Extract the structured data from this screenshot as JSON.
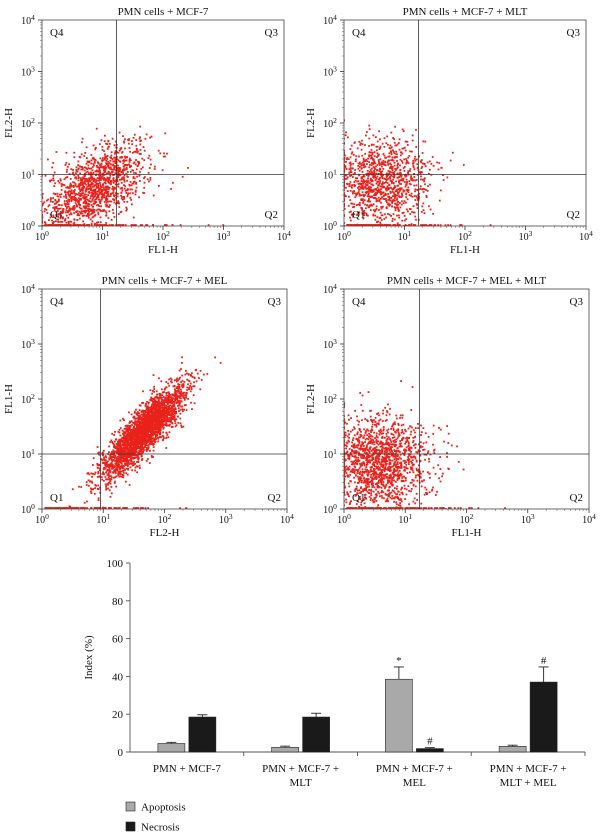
{
  "chart_data": [
    {
      "type": "scatter",
      "title": "PMN cells + MCF-7",
      "xlabel": "FL1-H",
      "ylabel": "FL2-H",
      "scale": "log",
      "xlim": [
        1,
        10000
      ],
      "ylim": [
        1,
        10000
      ],
      "gate": {
        "x": 17,
        "y": 10
      },
      "ticks": [
        "10^0",
        "10^1",
        "10^2",
        "10^3",
        "10^4"
      ],
      "quadrants": [
        "Q4",
        "Q3",
        "Q1",
        "Q2"
      ],
      "point_color": "#e8221b",
      "population": {
        "cx": 8,
        "cy": 6,
        "sx": 0.42,
        "sy": 0.42,
        "rho": 0.55,
        "n": 1300
      }
    },
    {
      "type": "scatter",
      "title": "PMN cells + MCF-7 + MLT",
      "xlabel": "FL1-H",
      "ylabel": "FL2-H",
      "scale": "log",
      "xlim": [
        1,
        10000
      ],
      "ylim": [
        1,
        10000
      ],
      "gate": {
        "x": 17,
        "y": 10
      },
      "ticks": [
        "10^0",
        "10^1",
        "10^2",
        "10^3",
        "10^4"
      ],
      "quadrants": [
        "Q4",
        "Q3",
        "Q1",
        "Q2"
      ],
      "point_color": "#e8221b",
      "population": {
        "cx": 4,
        "cy": 7,
        "sx": 0.42,
        "sy": 0.42,
        "rho": 0.0,
        "n": 1100
      }
    },
    {
      "type": "scatter",
      "title": "PMN cells + MCF-7 + MEL",
      "xlabel": "FL2-H",
      "ylabel": "FL1-H",
      "scale": "log",
      "xlim": [
        1,
        10000
      ],
      "ylim": [
        1,
        10000
      ],
      "gate": {
        "x": 9,
        "y": 10
      },
      "ticks": [
        "10^0",
        "10^1",
        "10^2",
        "10^3",
        "10^4"
      ],
      "quadrants": [
        "Q4",
        "Q3",
        "Q1",
        "Q2"
      ],
      "point_color": "#e8221b",
      "population": {
        "cx": 45,
        "cy": 25,
        "sx": 0.34,
        "sy": 0.42,
        "rho": 0.85,
        "n": 2600
      }
    },
    {
      "type": "scatter",
      "title": "PMN cells + MCF-7 + MEL + MLT",
      "xlabel": "FL1-H",
      "ylabel": "FL2-H",
      "scale": "log",
      "xlim": [
        1,
        10000
      ],
      "ylim": [
        1,
        10000
      ],
      "gate": {
        "x": 17,
        "y": 10
      },
      "ticks": [
        "10^0",
        "10^1",
        "10^2",
        "10^3",
        "10^4"
      ],
      "quadrants": [
        "Q4",
        "Q3",
        "Q1",
        "Q2"
      ],
      "point_color": "#e8221b",
      "population": {
        "cx": 4,
        "cy": 7,
        "sx": 0.42,
        "sy": 0.42,
        "rho": 0.0,
        "n": 1500
      }
    },
    {
      "type": "bar",
      "categories": [
        "PMN + MCF-7",
        "PMN + MCF-7 + MLT",
        "PMN + MCF-7 + MEL",
        "PMN + MCF-7 + MLT + MEL"
      ],
      "ylabel": "Index (%)",
      "ylim": [
        0,
        100
      ],
      "yticks": [
        0,
        20,
        40,
        60,
        80,
        100
      ],
      "legend_position": "bottom-left",
      "series": [
        {
          "name": "Apoptosis",
          "color": "#a9a9a9",
          "values": [
            4.5,
            2.5,
            38.5,
            3.0
          ],
          "errors": [
            0.6,
            0.6,
            6.5,
            0.6
          ],
          "marks": [
            "",
            "",
            "*",
            ""
          ]
        },
        {
          "name": "Necrosis",
          "color": "#1a1a1a",
          "values": [
            18.5,
            18.5,
            1.8,
            37.0
          ],
          "errors": [
            1.2,
            2.0,
            0.5,
            8.0
          ],
          "marks": [
            "",
            "",
            "#",
            "#"
          ]
        }
      ]
    }
  ]
}
